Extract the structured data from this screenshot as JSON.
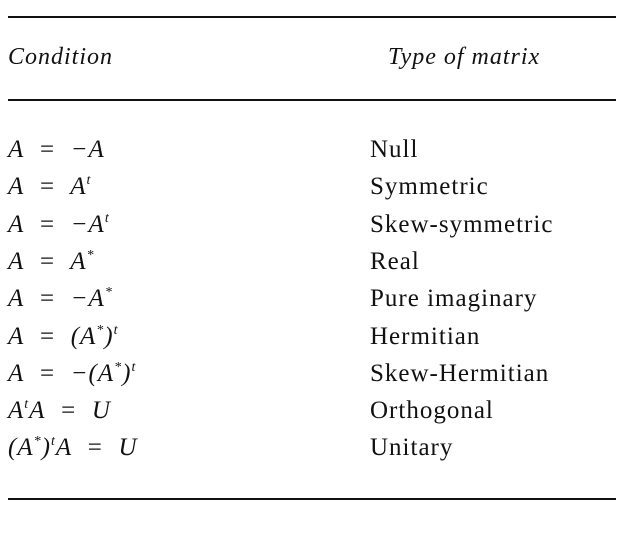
{
  "header": {
    "condition": "Condition",
    "type": "Type of matrix"
  },
  "rows": [
    {
      "condition": [
        {
          "text": "A  =  −A"
        }
      ],
      "type": "Null"
    },
    {
      "condition": [
        {
          "text": "A  =  A",
          "sup": "t"
        }
      ],
      "type": "Symmetric"
    },
    {
      "condition": [
        {
          "text": "A  =  −A",
          "sup": "t"
        }
      ],
      "type": "Skew-symmetric"
    },
    {
      "condition": [
        {
          "text": "A  =  A",
          "sup": "*"
        }
      ],
      "type": "Real"
    },
    {
      "condition": [
        {
          "text": "A  =  −A",
          "sup": "*"
        }
      ],
      "type": "Pure imaginary"
    },
    {
      "condition": [
        {
          "text": "A  =  (A",
          "sup": "*"
        },
        {
          "text": ")",
          "sup": "t"
        }
      ],
      "type": "Hermitian"
    },
    {
      "condition": [
        {
          "text": "A  =  −(A",
          "sup": "*"
        },
        {
          "text": ")",
          "sup": "t"
        }
      ],
      "type": "Skew-Hermitian"
    },
    {
      "condition": [
        {
          "text": "A",
          "sup": "t"
        },
        {
          "text": "A  =  U"
        }
      ],
      "type": "Orthogonal"
    },
    {
      "condition": [
        {
          "text": "(A",
          "sup": "*"
        },
        {
          "text": ")",
          "sup": "t"
        },
        {
          "text": "A  =  U"
        }
      ],
      "type": "Unitary"
    }
  ]
}
